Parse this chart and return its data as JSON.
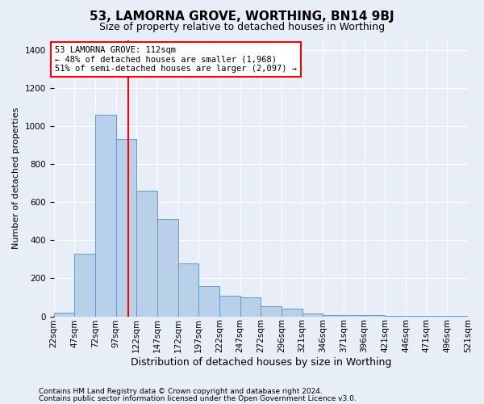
{
  "title": "53, LAMORNA GROVE, WORTHING, BN14 9BJ",
  "subtitle": "Size of property relative to detached houses in Worthing",
  "xlabel": "Distribution of detached houses by size in Worthing",
  "ylabel": "Number of detached properties",
  "footer_line1": "Contains HM Land Registry data © Crown copyright and database right 2024.",
  "footer_line2": "Contains public sector information licensed under the Open Government Licence v3.0.",
  "bar_labels": [
    "22sqm",
    "47sqm",
    "72sqm",
    "97sqm",
    "122sqm",
    "147sqm",
    "172sqm",
    "197sqm",
    "222sqm",
    "247sqm",
    "272sqm",
    "296sqm",
    "321sqm",
    "346sqm",
    "371sqm",
    "396sqm",
    "421sqm",
    "446sqm",
    "471sqm",
    "496sqm",
    "521sqm"
  ],
  "bar_values": [
    20,
    330,
    1060,
    930,
    660,
    510,
    280,
    160,
    110,
    100,
    55,
    40,
    15,
    8,
    5,
    5,
    3,
    2,
    1,
    1,
    0
  ],
  "bar_color": "#b8d0e8",
  "bar_edgecolor": "#6699cc",
  "red_line_color": "red",
  "annotation_text": "53 LAMORNA GROVE: 112sqm\n← 48% of detached houses are smaller (1,968)\n51% of semi-detached houses are larger (2,097) →",
  "annotation_box_facecolor": "white",
  "annotation_box_edgecolor": "red",
  "ylim": [
    0,
    1450
  ],
  "yticks": [
    0,
    200,
    400,
    600,
    800,
    1000,
    1200,
    1400
  ],
  "background_color": "#e8eef8",
  "plot_background": "#e8eef8",
  "grid_color": "white",
  "title_fontsize": 11,
  "subtitle_fontsize": 9,
  "ylabel_fontsize": 8,
  "xlabel_fontsize": 9,
  "tick_fontsize": 7.5,
  "footer_fontsize": 6.5
}
